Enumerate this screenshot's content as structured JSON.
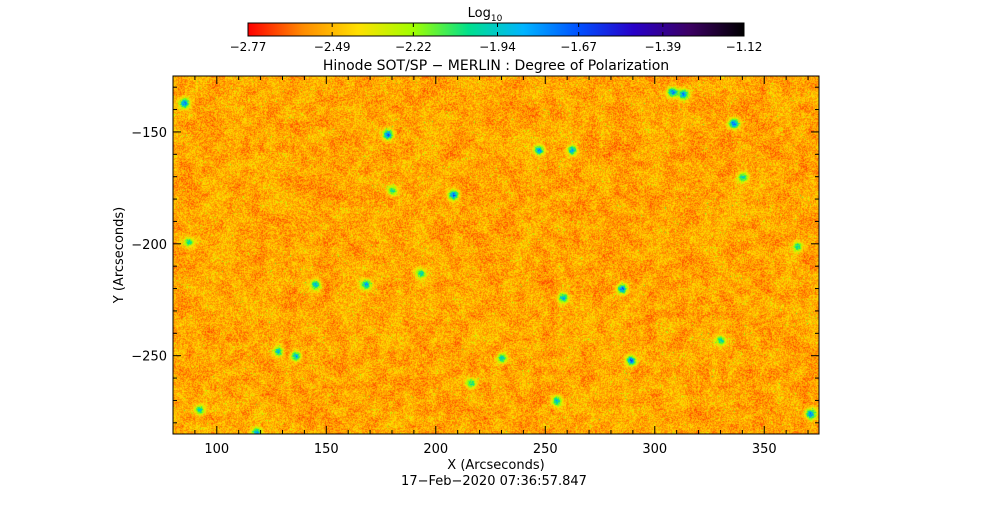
{
  "chart_data": {
    "type": "heatmap",
    "title": "Hinode SOT/SP − MERLIN : Degree of Polarization",
    "xlabel": "X (Arcseconds)",
    "ylabel": "Y (Arcseconds)",
    "footer": "17−Feb−2020 07:36:57.847",
    "xlim": [
      80,
      375
    ],
    "ylim": [
      -285,
      -125
    ],
    "x_ticks": [
      100,
      150,
      200,
      250,
      300,
      350
    ],
    "y_ticks": [
      -150,
      -200,
      -250
    ],
    "x_tick_labels": [
      "100",
      "150",
      "200",
      "250",
      "300",
      "350"
    ],
    "y_tick_labels": [
      "−150",
      "−200",
      "−250"
    ],
    "colorbar": {
      "label_base": "Log",
      "label_sub": "10",
      "vmin": -2.77,
      "vmax": -1.12,
      "tick_values": [
        -2.77,
        -2.49,
        -2.22,
        -1.94,
        -1.67,
        -1.39,
        -1.12
      ],
      "tick_labels": [
        "−2.77",
        "−2.49",
        "−2.22",
        "−1.94",
        "−1.67",
        "−1.39",
        "−1.12"
      ],
      "colormap_stops": [
        "#ff0000",
        "#ff8c00",
        "#ffe000",
        "#a0ff00",
        "#00e08c",
        "#00b4ff",
        "#0050ff",
        "#2800c8",
        "#3c0064",
        "#000000"
      ]
    },
    "typical_range": [
      -2.7,
      -2.35
    ],
    "features": [
      {
        "x": 85,
        "y": -137,
        "value": -1.55
      },
      {
        "x": 178,
        "y": -151,
        "value": -1.5
      },
      {
        "x": 208,
        "y": -178,
        "value": -1.5
      },
      {
        "x": 247,
        "y": -158,
        "value": -1.62
      },
      {
        "x": 262,
        "y": -158,
        "value": -1.65
      },
      {
        "x": 336,
        "y": -146,
        "value": -1.55
      },
      {
        "x": 313,
        "y": -133,
        "value": -1.6
      },
      {
        "x": 308,
        "y": -132,
        "value": -1.58
      },
      {
        "x": 145,
        "y": -218,
        "value": -1.7
      },
      {
        "x": 168,
        "y": -218,
        "value": -1.7
      },
      {
        "x": 193,
        "y": -213,
        "value": -1.85
      },
      {
        "x": 258,
        "y": -224,
        "value": -1.65
      },
      {
        "x": 285,
        "y": -220,
        "value": -1.55
      },
      {
        "x": 289,
        "y": -252,
        "value": -1.55
      },
      {
        "x": 136,
        "y": -250,
        "value": -1.7
      },
      {
        "x": 128,
        "y": -248,
        "value": -1.75
      },
      {
        "x": 230,
        "y": -251,
        "value": -1.8
      },
      {
        "x": 87,
        "y": -199,
        "value": -1.9
      },
      {
        "x": 92,
        "y": -274,
        "value": -1.8
      },
      {
        "x": 118,
        "y": -284,
        "value": -1.7
      },
      {
        "x": 216,
        "y": -262,
        "value": -1.85
      },
      {
        "x": 255,
        "y": -270,
        "value": -1.75
      },
      {
        "x": 371,
        "y": -276,
        "value": -1.6
      },
      {
        "x": 365,
        "y": -201,
        "value": -1.85
      },
      {
        "x": 340,
        "y": -170,
        "value": -1.85
      },
      {
        "x": 180,
        "y": -176,
        "value": -1.9
      },
      {
        "x": 330,
        "y": -243,
        "value": -1.85
      }
    ]
  }
}
